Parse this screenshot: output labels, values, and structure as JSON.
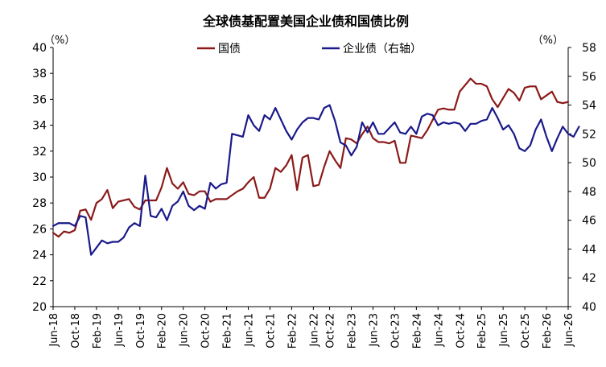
{
  "chart_data": {
    "type": "line",
    "title": "全球债基配置美国企业债和国债比例",
    "left_unit": "（%）",
    "right_unit": "（%）",
    "left_axis": {
      "min": 20,
      "max": 40,
      "step": 2,
      "ticks": [
        "20",
        "22",
        "24",
        "26",
        "28",
        "30",
        "32",
        "34",
        "36",
        "38",
        "40"
      ]
    },
    "right_axis": {
      "min": 40,
      "max": 58,
      "step": 2,
      "ticks": [
        "40",
        "42",
        "44",
        "46",
        "48",
        "50",
        "52",
        "54",
        "56",
        "58"
      ]
    },
    "x_ticks": [
      "Jun-18",
      "Oct-18",
      "Feb-19",
      "Jun-19",
      "Oct-19",
      "Feb-20",
      "Jun-20",
      "Oct-20",
      "Feb-21",
      "Jun-21",
      "Oct-21",
      "Feb-22",
      "Jun-22",
      "Oct-22",
      "Feb-23",
      "Jun-23",
      "Oct-23",
      "Feb-24",
      "Jun-24",
      "Oct-24",
      "Feb-25",
      "Jun-25",
      "Oct-25",
      "Feb-26",
      "Jun-26"
    ],
    "x_start": "2018-06",
    "colors": {
      "treasury": "#8B1A1A",
      "corporate": "#1A1A8B"
    },
    "series": [
      {
        "name": "国债",
        "axis": "left",
        "color": "#8B1A1A",
        "values": [
          25.7,
          25.4,
          25.8,
          25.7,
          25.9,
          27.4,
          27.5,
          26.7,
          28.0,
          28.3,
          29.0,
          27.6,
          28.1,
          28.2,
          28.3,
          27.7,
          27.5,
          28.2,
          28.2,
          28.2,
          29.2,
          30.7,
          29.5,
          29.1,
          29.6,
          28.7,
          28.6,
          28.9,
          28.9,
          28.1,
          28.3,
          28.3,
          28.3,
          28.6,
          28.9,
          29.1,
          29.6,
          30.0,
          28.4,
          28.4,
          29.1,
          30.7,
          30.4,
          30.9,
          31.7,
          29.0,
          31.5,
          31.7,
          29.3,
          29.4,
          30.8,
          32.0,
          31.3,
          30.7,
          33.0,
          32.9,
          32.6,
          33.3,
          33.9,
          33.0,
          32.7,
          32.7,
          32.6,
          32.8,
          31.1,
          31.1,
          33.2,
          33.1,
          33.0,
          33.6,
          34.4,
          35.2,
          35.3,
          35.2,
          35.2,
          36.6,
          37.1,
          37.6,
          37.2,
          37.2,
          37.0,
          36.0,
          35.4,
          36.1,
          36.8,
          36.5,
          35.9,
          36.9,
          37.0,
          37.0,
          36.0,
          36.3,
          36.6,
          35.8,
          35.7,
          35.8
        ]
      },
      {
        "name": "企业债（右轴）",
        "axis": "right",
        "color": "#1A1A8B",
        "values": [
          45.6,
          45.8,
          45.8,
          45.8,
          45.6,
          46.3,
          46.2,
          43.6,
          44.1,
          44.6,
          44.4,
          44.5,
          44.5,
          44.8,
          45.5,
          45.8,
          45.6,
          49.1,
          46.3,
          46.2,
          46.8,
          46.0,
          47.0,
          47.3,
          48.0,
          47.0,
          46.7,
          47.0,
          46.8,
          48.6,
          48.2,
          48.5,
          48.6,
          52.0,
          51.9,
          51.8,
          53.3,
          52.6,
          52.2,
          53.3,
          53.0,
          53.8,
          53.0,
          52.2,
          51.6,
          52.3,
          52.8,
          53.1,
          53.1,
          53.0,
          53.8,
          54.0,
          52.9,
          51.4,
          51.2,
          50.5,
          51.1,
          52.8,
          52.1,
          52.8,
          52.0,
          52.0,
          52.4,
          52.8,
          52.1,
          52.0,
          52.5,
          52.0,
          53.2,
          53.4,
          53.3,
          52.6,
          52.8,
          52.7,
          52.8,
          52.7,
          52.2,
          52.7,
          52.7,
          52.9,
          53.0,
          53.8,
          53.1,
          52.3,
          52.6,
          52.0,
          51.0,
          50.8,
          51.2,
          52.3,
          53.0,
          51.8,
          50.8,
          51.7,
          52.5,
          52.0,
          51.8,
          52.5
        ]
      }
    ]
  }
}
